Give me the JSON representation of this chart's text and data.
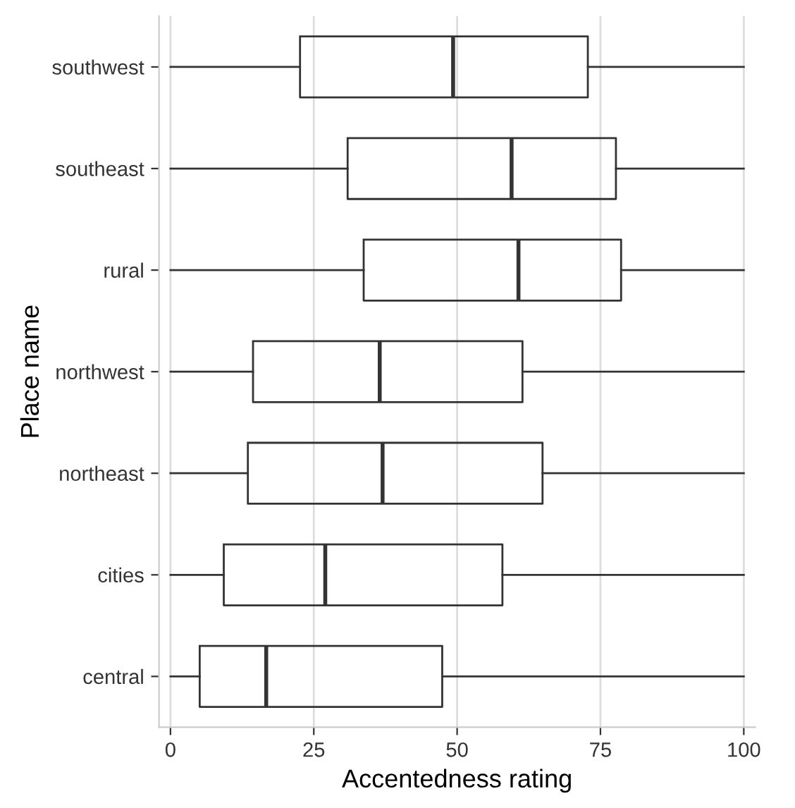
{
  "chart_data": {
    "type": "box",
    "orientation": "horizontal",
    "xlabel": "Accentedness rating",
    "ylabel": "Place name",
    "categories": [
      "southwest",
      "southeast",
      "rural",
      "northwest",
      "northeast",
      "cities",
      "central"
    ],
    "boxes": [
      {
        "low": 0,
        "q1": 22.6,
        "median": 49.3,
        "q3": 72.8,
        "high": 100
      },
      {
        "low": 0,
        "q1": 30.9,
        "median": 59.5,
        "q3": 77.7,
        "high": 100
      },
      {
        "low": 0,
        "q1": 33.7,
        "median": 60.7,
        "q3": 78.6,
        "high": 100
      },
      {
        "low": 0,
        "q1": 14.4,
        "median": 36.5,
        "q3": 61.4,
        "high": 100
      },
      {
        "low": 0,
        "q1": 13.5,
        "median": 37.0,
        "q3": 64.9,
        "high": 100
      },
      {
        "low": 0,
        "q1": 9.3,
        "median": 27.0,
        "q3": 57.9,
        "high": 100
      },
      {
        "low": 0,
        "q1": 5.1,
        "median": 16.7,
        "q3": 47.4,
        "high": 100
      }
    ],
    "color": "#333333",
    "xlim": [
      -2,
      102
    ],
    "xticks": [
      0,
      25,
      50,
      75,
      100
    ],
    "grid": "x"
  }
}
